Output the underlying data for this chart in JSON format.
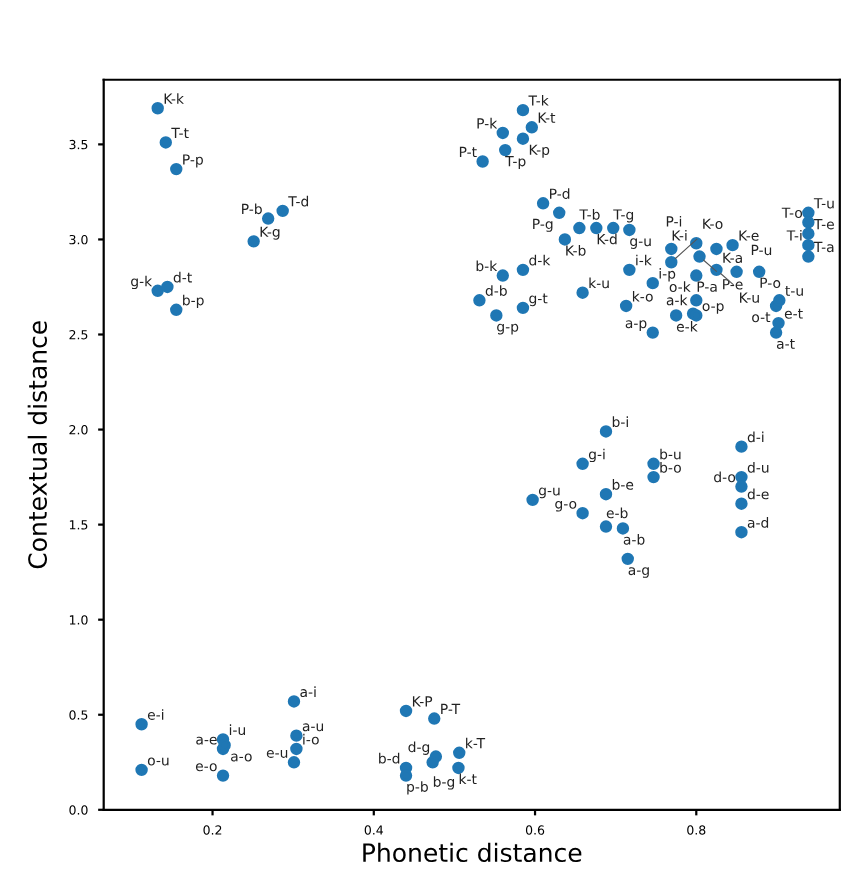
{
  "chart_data": {
    "type": "scatter",
    "xlabel": "Phonetic distance",
    "ylabel": "Contextual distance",
    "xlim": [
      0.065,
      0.978
    ],
    "ylim": [
      0,
      3.84
    ],
    "xticks": [
      0.2,
      0.4,
      0.6,
      0.8
    ],
    "yticks": [
      {
        "value": 0,
        "label": "0.0"
      },
      {
        "value": 0.5,
        "label": "0.5"
      },
      {
        "value": 1,
        "label": "1.0"
      },
      {
        "value": 1.5,
        "label": "1.5"
      },
      {
        "value": 2,
        "label": "2.0"
      },
      {
        "value": 2.5,
        "label": "2.5"
      },
      {
        "value": 3,
        "label": "3.0"
      },
      {
        "value": 3.5,
        "label": "3.5"
      }
    ],
    "grid": false,
    "marker": "circle",
    "series": [
      {
        "color": "#1f77b4",
        "x": [
          0.132,
          0.142,
          0.155,
          0.269,
          0.287,
          0.251,
          0.132,
          0.144,
          0.155,
          0.585,
          0.56,
          0.596,
          0.535,
          0.563,
          0.585,
          0.61,
          0.63,
          0.637,
          0.655,
          0.676,
          0.697,
          0.717,
          0.585,
          0.56,
          0.531,
          0.585,
          0.552,
          0.659,
          0.713,
          0.717,
          0.746,
          0.769,
          0.769,
          0.8,
          0.804,
          0.8,
          0.845,
          0.825,
          0.825,
          0.85,
          0.878,
          0.775,
          0.796,
          0.746,
          0.8,
          0.8,
          0.899,
          0.903,
          0.899,
          0.902,
          0.939,
          0.939,
          0.939,
          0.939,
          0.939,
          0.688,
          0.659,
          0.747,
          0.747,
          0.688,
          0.597,
          0.659,
          0.688,
          0.709,
          0.715,
          0.856,
          0.856,
          0.856,
          0.856,
          0.856,
          0.112,
          0.112,
          0.213,
          0.213,
          0.215,
          0.213,
          0.301,
          0.304,
          0.304,
          0.301,
          0.44,
          0.475,
          0.477,
          0.506,
          0.505,
          0.44,
          0.44,
          0.473
        ],
        "values": [
          3.69,
          3.51,
          3.37,
          3.11,
          3.15,
          2.99,
          2.73,
          2.75,
          2.63,
          3.68,
          3.56,
          3.59,
          3.41,
          3.47,
          3.53,
          3.19,
          3.14,
          3.0,
          3.06,
          3.06,
          3.06,
          3.05,
          2.84,
          2.81,
          2.68,
          2.64,
          2.6,
          2.72,
          2.65,
          2.84,
          2.77,
          2.95,
          2.88,
          2.98,
          2.91,
          2.81,
          2.97,
          2.95,
          2.84,
          2.83,
          2.83,
          2.6,
          2.61,
          2.51,
          2.68,
          2.6,
          2.65,
          2.68,
          2.51,
          2.56,
          3.14,
          3.09,
          3.03,
          2.97,
          2.91,
          1.99,
          1.82,
          1.82,
          1.75,
          1.66,
          1.63,
          1.56,
          1.49,
          1.48,
          1.32,
          1.91,
          1.75,
          1.7,
          1.61,
          1.46,
          0.45,
          0.21,
          0.37,
          0.32,
          0.34,
          0.18,
          0.57,
          0.39,
          0.32,
          0.25,
          0.52,
          0.48,
          0.28,
          0.3,
          0.22,
          0.22,
          0.18,
          0.25
        ]
      }
    ],
    "annotations": [
      {
        "text": "K-k",
        "x": 0.132,
        "y": 3.69
      },
      {
        "text": "T-t",
        "x": 0.142,
        "y": 3.51
      },
      {
        "text": "P-p",
        "x": 0.155,
        "y": 3.37
      },
      {
        "text": "P-b",
        "x": 0.269,
        "y": 3.11
      },
      {
        "text": "T-d",
        "x": 0.287,
        "y": 3.15
      },
      {
        "text": "K-g",
        "x": 0.251,
        "y": 2.99
      },
      {
        "text": "g-k",
        "x": 0.132,
        "y": 2.73
      },
      {
        "text": "d-t",
        "x": 0.144,
        "y": 2.75
      },
      {
        "text": "b-p",
        "x": 0.155,
        "y": 2.63
      },
      {
        "text": "T-k",
        "x": 0.585,
        "y": 3.68
      },
      {
        "text": "P-k",
        "x": 0.56,
        "y": 3.56
      },
      {
        "text": "K-t",
        "x": 0.596,
        "y": 3.59
      },
      {
        "text": "P-t",
        "x": 0.535,
        "y": 3.41
      },
      {
        "text": "T-p",
        "x": 0.563,
        "y": 3.47
      },
      {
        "text": "K-p",
        "x": 0.585,
        "y": 3.53
      },
      {
        "text": "P-d",
        "x": 0.61,
        "y": 3.19
      },
      {
        "text": "P-g",
        "x": 0.63,
        "y": 3.14
      },
      {
        "text": "K-b",
        "x": 0.637,
        "y": 3.0
      },
      {
        "text": "T-b",
        "x": 0.655,
        "y": 3.06
      },
      {
        "text": "K-d",
        "x": 0.676,
        "y": 3.06
      },
      {
        "text": "T-g",
        "x": 0.697,
        "y": 3.06
      },
      {
        "text": "g-u",
        "x": 0.717,
        "y": 3.05
      },
      {
        "text": "d-k",
        "x": 0.585,
        "y": 2.84
      },
      {
        "text": "b-k",
        "x": 0.56,
        "y": 2.81
      },
      {
        "text": "d-b",
        "x": 0.531,
        "y": 2.68
      },
      {
        "text": "g-t",
        "x": 0.585,
        "y": 2.64
      },
      {
        "text": "g-p",
        "x": 0.552,
        "y": 2.6
      },
      {
        "text": "k-u",
        "x": 0.659,
        "y": 2.72
      },
      {
        "text": "k-o",
        "x": 0.713,
        "y": 2.65
      },
      {
        "text": "i-k",
        "x": 0.717,
        "y": 2.84
      },
      {
        "text": "i-p",
        "x": 0.746,
        "y": 2.77
      },
      {
        "text": "K-i",
        "x": 0.769,
        "y": 2.95
      },
      {
        "text": "K-o",
        "x": 0.769,
        "y": 2.88
      },
      {
        "text": "P-i",
        "x": 0.8,
        "y": 2.98
      },
      {
        "text": "P-e",
        "x": 0.804,
        "y": 2.91
      },
      {
        "text": "P-a",
        "x": 0.8,
        "y": 2.81
      },
      {
        "text": "K-e",
        "x": 0.845,
        "y": 2.97
      },
      {
        "text": "K-a",
        "x": 0.825,
        "y": 2.95
      },
      {
        "text": "K-u",
        "x": 0.825,
        "y": 2.84
      },
      {
        "text": "P-u",
        "x": 0.85,
        "y": 2.83
      },
      {
        "text": "P-o",
        "x": 0.878,
        "y": 2.83
      },
      {
        "text": "e-k",
        "x": 0.775,
        "y": 2.6
      },
      {
        "text": "a-k",
        "x": 0.796,
        "y": 2.61
      },
      {
        "text": "a-p",
        "x": 0.746,
        "y": 2.51
      },
      {
        "text": "o-k",
        "x": 0.8,
        "y": 2.68
      },
      {
        "text": "o-p",
        "x": 0.8,
        "y": 2.6
      },
      {
        "text": "o-t",
        "x": 0.899,
        "y": 2.65
      },
      {
        "text": "t-u",
        "x": 0.903,
        "y": 2.68
      },
      {
        "text": "a-t",
        "x": 0.899,
        "y": 2.51
      },
      {
        "text": "e-t",
        "x": 0.902,
        "y": 2.56
      },
      {
        "text": "T-u",
        "x": 0.939,
        "y": 3.14
      },
      {
        "text": "T-o",
        "x": 0.939,
        "y": 3.09
      },
      {
        "text": "T-e",
        "x": 0.939,
        "y": 3.03
      },
      {
        "text": "T-i",
        "x": 0.939,
        "y": 2.97
      },
      {
        "text": "T-a",
        "x": 0.939,
        "y": 2.91
      },
      {
        "text": "b-i",
        "x": 0.688,
        "y": 1.99
      },
      {
        "text": "g-i",
        "x": 0.659,
        "y": 1.82
      },
      {
        "text": "b-u",
        "x": 0.747,
        "y": 1.82
      },
      {
        "text": "b-o",
        "x": 0.747,
        "y": 1.75
      },
      {
        "text": "b-e",
        "x": 0.688,
        "y": 1.66
      },
      {
        "text": "g-u",
        "x": 0.597,
        "y": 1.63
      },
      {
        "text": "g-o",
        "x": 0.659,
        "y": 1.56
      },
      {
        "text": "e-b",
        "x": 0.688,
        "y": 1.49
      },
      {
        "text": "a-b",
        "x": 0.709,
        "y": 1.48
      },
      {
        "text": "a-g",
        "x": 0.715,
        "y": 1.32
      },
      {
        "text": "d-i",
        "x": 0.856,
        "y": 1.91
      },
      {
        "text": "d-u",
        "x": 0.856,
        "y": 1.75
      },
      {
        "text": "d-o",
        "x": 0.856,
        "y": 1.7
      },
      {
        "text": "d-e",
        "x": 0.856,
        "y": 1.61
      },
      {
        "text": "a-d",
        "x": 0.856,
        "y": 1.46
      },
      {
        "text": "e-i",
        "x": 0.112,
        "y": 0.45
      },
      {
        "text": "o-u",
        "x": 0.112,
        "y": 0.21
      },
      {
        "text": "i-u",
        "x": 0.213,
        "y": 0.37
      },
      {
        "text": "a-e",
        "x": 0.213,
        "y": 0.32
      },
      {
        "text": "a-o",
        "x": 0.215,
        "y": 0.34
      },
      {
        "text": "e-o",
        "x": 0.213,
        "y": 0.18
      },
      {
        "text": "a-i",
        "x": 0.301,
        "y": 0.57
      },
      {
        "text": "a-u",
        "x": 0.304,
        "y": 0.39
      },
      {
        "text": "i-o",
        "x": 0.304,
        "y": 0.32
      },
      {
        "text": "e-u",
        "x": 0.301,
        "y": 0.25
      },
      {
        "text": "K-P",
        "x": 0.44,
        "y": 0.52
      },
      {
        "text": "P-T",
        "x": 0.475,
        "y": 0.48
      },
      {
        "text": "d-g",
        "x": 0.477,
        "y": 0.28
      },
      {
        "text": "k-T",
        "x": 0.506,
        "y": 0.3
      },
      {
        "text": "k-t",
        "x": 0.505,
        "y": 0.22
      },
      {
        "text": "b-d",
        "x": 0.44,
        "y": 0.22
      },
      {
        "text": "p-b",
        "x": 0.44,
        "y": 0.18
      },
      {
        "text": "b-g",
        "x": 0.473,
        "y": 0.25
      }
    ]
  }
}
